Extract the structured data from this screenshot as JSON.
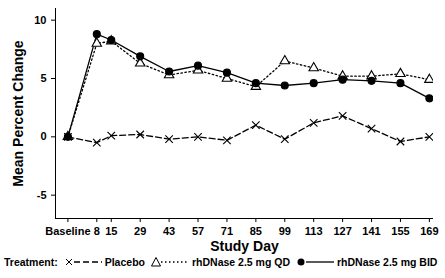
{
  "chart_data": {
    "type": "line",
    "x_label": "Study Day",
    "y_label": "Mean Percent Change",
    "legend_title": "Treatment:",
    "x": [
      -6,
      8,
      15,
      29,
      43,
      57,
      71,
      85,
      99,
      113,
      127,
      141,
      155,
      169
    ],
    "series": [
      {
        "name": "Placebo",
        "color": "#000000",
        "marker": "x",
        "line_style": "dashed",
        "values": [
          0,
          -0.5,
          0.1,
          0.2,
          -0.2,
          0,
          -0.3,
          1.0,
          -0.2,
          1.2,
          1.8,
          0.7,
          -0.4,
          0
        ]
      },
      {
        "name": "rhDNase 2.5 mg QD",
        "color": "#000000",
        "marker": "triangle",
        "line_style": "dotted",
        "values": [
          0,
          8.0,
          8.2,
          6.3,
          5.3,
          5.7,
          5.0,
          4.3,
          6.5,
          5.9,
          5.2,
          5.2,
          5.4,
          4.9
        ]
      },
      {
        "name": "rhDNase 2.5 mg BID",
        "color": "#000000",
        "marker": "circle",
        "line_style": "solid",
        "values": [
          0,
          8.8,
          8.3,
          6.9,
          5.6,
          6.1,
          5.5,
          4.6,
          4.4,
          4.6,
          4.9,
          4.8,
          4.6,
          3.3
        ]
      }
    ],
    "xlim": [
      -12,
      171
    ],
    "ylim": [
      -7,
      11
    ],
    "xticks": [
      {
        "value": -6,
        "label": "Baseline"
      },
      8,
      15,
      29,
      43,
      57,
      71,
      85,
      99,
      113,
      127,
      141,
      155,
      169
    ],
    "yticks": [
      -5,
      0,
      5,
      10
    ],
    "legend": "bottom",
    "grid": false
  }
}
